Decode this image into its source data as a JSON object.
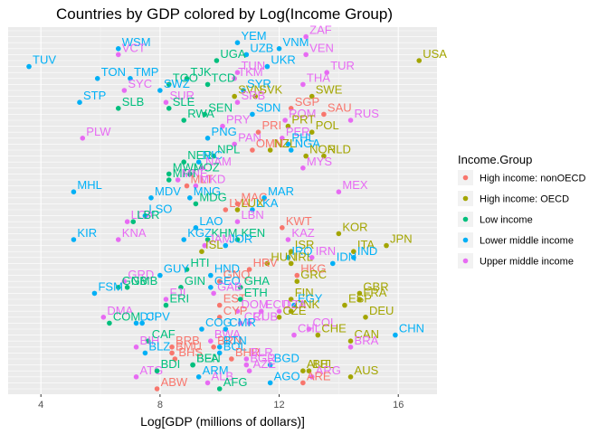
{
  "chart_data": {
    "type": "scatter",
    "title": "Countries by GDP colored by Log(Income Group)",
    "xlabel": "Log[GDP (millions of dollars)]",
    "ylabel": "",
    "xlim": [
      2.9,
      17.3
    ],
    "xticks": [
      4,
      8,
      12,
      16
    ],
    "y_axis": "none",
    "grid": true,
    "legend": {
      "title": "Income.Group",
      "placement": "right",
      "entries": [
        {
          "name": "High income: nonOECD",
          "color": "#F8766D"
        },
        {
          "name": "High income: OECD",
          "color": "#A3A500"
        },
        {
          "name": "Low income",
          "color": "#00BF7D"
        },
        {
          "name": "Lower middle income",
          "color": "#00B0F6"
        },
        {
          "name": "Upper middle income",
          "color": "#E76BF3"
        }
      ]
    },
    "points": [
      {
        "label": "USA",
        "x": 16.7,
        "r": 5,
        "g": 1
      },
      {
        "label": "TUV",
        "x": 3.6,
        "r": 6,
        "g": 3
      },
      {
        "label": "WSM",
        "x": 6.6,
        "r": 3,
        "g": 3
      },
      {
        "label": "VCT",
        "x": 6.6,
        "r": 4,
        "g": 4
      },
      {
        "label": "VNM",
        "x": 12.0,
        "r": 3,
        "g": 3
      },
      {
        "label": "ZAF",
        "x": 12.9,
        "r": 1,
        "g": 4
      },
      {
        "label": "VEN",
        "x": 12.9,
        "r": 4,
        "g": 4
      },
      {
        "label": "YEM",
        "x": 10.6,
        "r": 2,
        "g": 3
      },
      {
        "label": "UZB",
        "x": 10.9,
        "r": 4,
        "g": 3
      },
      {
        "label": "UKR",
        "x": 11.6,
        "r": 6,
        "g": 3
      },
      {
        "label": "UGA",
        "x": 9.9,
        "r": 5,
        "g": 2
      },
      {
        "label": "TUN",
        "x": 10.6,
        "r": 7,
        "g": 4
      },
      {
        "label": "TUR",
        "x": 13.6,
        "r": 7,
        "g": 4
      },
      {
        "label": "TON",
        "x": 5.9,
        "r": 8,
        "g": 3
      },
      {
        "label": "TMP",
        "x": 7.0,
        "r": 8,
        "g": 3
      },
      {
        "label": "TJK",
        "x": 8.9,
        "r": 8,
        "g": 2
      },
      {
        "label": "TKM",
        "x": 10.5,
        "r": 8,
        "g": 4
      },
      {
        "label": "TGO",
        "x": 8.3,
        "r": 9,
        "g": 2
      },
      {
        "label": "TCD",
        "x": 9.6,
        "r": 9,
        "g": 2
      },
      {
        "label": "THA",
        "x": 12.8,
        "r": 9,
        "g": 4
      },
      {
        "label": "SYC",
        "x": 6.8,
        "r": 10,
        "g": 4
      },
      {
        "label": "SWZ",
        "x": 8.0,
        "r": 10,
        "g": 3
      },
      {
        "label": "SYR",
        "x": 10.8,
        "r": 10,
        "g": 3
      },
      {
        "label": "SWE",
        "x": 13.1,
        "r": 11,
        "g": 1
      },
      {
        "label": "SVN",
        "x": 10.5,
        "r": 11,
        "g": 1
      },
      {
        "label": "SVK",
        "x": 11.2,
        "r": 11,
        "g": 1
      },
      {
        "label": "STP",
        "x": 5.3,
        "r": 12,
        "g": 3
      },
      {
        "label": "SUR",
        "x": 8.2,
        "r": 12,
        "g": 4
      },
      {
        "label": "SRB",
        "x": 10.6,
        "r": 12,
        "g": 4
      },
      {
        "label": "SLB",
        "x": 6.6,
        "r": 13,
        "g": 2
      },
      {
        "label": "SLE",
        "x": 8.3,
        "r": 13,
        "g": 2
      },
      {
        "label": "SEN",
        "x": 9.5,
        "r": 14,
        "g": 2
      },
      {
        "label": "SDN",
        "x": 11.1,
        "r": 14,
        "g": 3
      },
      {
        "label": "SGP",
        "x": 12.4,
        "r": 13,
        "g": 0
      },
      {
        "label": "SAU",
        "x": 13.5,
        "r": 14,
        "g": 0
      },
      {
        "label": "RWA",
        "x": 8.8,
        "r": 15,
        "g": 2
      },
      {
        "label": "PRY",
        "x": 10.1,
        "r": 16,
        "g": 4
      },
      {
        "label": "ROM",
        "x": 12.2,
        "r": 15,
        "g": 4
      },
      {
        "label": "RUS",
        "x": 14.4,
        "r": 15,
        "g": 4
      },
      {
        "label": "PRT",
        "x": 12.3,
        "r": 16,
        "g": 1
      },
      {
        "label": "PRI",
        "x": 11.3,
        "r": 17,
        "g": 0
      },
      {
        "label": "POL",
        "x": 13.1,
        "r": 17,
        "g": 1
      },
      {
        "label": "PLW",
        "x": 5.4,
        "r": 18,
        "g": 4
      },
      {
        "label": "PNG",
        "x": 9.6,
        "r": 18,
        "g": 3
      },
      {
        "label": "PAN",
        "x": 10.5,
        "r": 19,
        "g": 4
      },
      {
        "label": "PER",
        "x": 12.1,
        "r": 18,
        "g": 4
      },
      {
        "label": "PHL",
        "x": 12.3,
        "r": 19,
        "g": 3
      },
      {
        "label": "OMN",
        "x": 11.1,
        "r": 20,
        "g": 0
      },
      {
        "label": "NZL",
        "x": 11.7,
        "r": 20,
        "g": 1
      },
      {
        "label": "NGA",
        "x": 12.4,
        "r": 20,
        "g": 3
      },
      {
        "label": "NOR",
        "x": 12.9,
        "r": 21,
        "g": 1
      },
      {
        "label": "NLD",
        "x": 13.5,
        "r": 21,
        "g": 1
      },
      {
        "label": "NPL",
        "x": 9.8,
        "r": 21,
        "g": 2
      },
      {
        "label": "NER",
        "x": 8.8,
        "r": 22,
        "g": 2
      },
      {
        "label": "NIC",
        "x": 9.3,
        "r": 22,
        "g": 3
      },
      {
        "label": "NAM",
        "x": 9.4,
        "r": 23,
        "g": 4
      },
      {
        "label": "MYS",
        "x": 12.8,
        "r": 23,
        "g": 4
      },
      {
        "label": "MWI",
        "x": 8.3,
        "r": 24,
        "g": 2
      },
      {
        "label": "MOZ",
        "x": 9.0,
        "r": 24,
        "g": 2
      },
      {
        "label": "MRT",
        "x": 8.3,
        "r": 25,
        "g": 2
      },
      {
        "label": "MNE",
        "x": 8.6,
        "r": 25,
        "g": 4
      },
      {
        "label": "MLT",
        "x": 8.9,
        "r": 26,
        "g": 0
      },
      {
        "label": "MKD",
        "x": 9.2,
        "r": 26,
        "g": 4
      },
      {
        "label": "MHL",
        "x": 5.1,
        "r": 27,
        "g": 3
      },
      {
        "label": "MDV",
        "x": 7.7,
        "r": 28,
        "g": 3
      },
      {
        "label": "MNG",
        "x": 9.0,
        "r": 28,
        "g": 3
      },
      {
        "label": "MDG",
        "x": 9.2,
        "r": 29,
        "g": 2
      },
      {
        "label": "MAR",
        "x": 11.5,
        "r": 28,
        "g": 3
      },
      {
        "label": "MEX",
        "x": 14.0,
        "r": 27,
        "g": 4
      },
      {
        "label": "MAC",
        "x": 10.6,
        "r": 29,
        "g": 0
      },
      {
        "label": "LVA",
        "x": 10.2,
        "r": 30,
        "g": 0
      },
      {
        "label": "LUX",
        "x": 10.6,
        "r": 30,
        "g": 1
      },
      {
        "label": "LKA",
        "x": 11.1,
        "r": 30,
        "g": 3
      },
      {
        "label": "LSO",
        "x": 7.5,
        "r": 31,
        "g": 3
      },
      {
        "label": "LCA",
        "x": 6.9,
        "r": 32,
        "g": 4
      },
      {
        "label": "LBR",
        "x": 7.1,
        "r": 32,
        "g": 2
      },
      {
        "label": "LBN",
        "x": 10.6,
        "r": 32,
        "g": 4
      },
      {
        "label": "KWT",
        "x": 12.1,
        "r": 33,
        "g": 0
      },
      {
        "label": "KOR",
        "x": 14.0,
        "r": 34,
        "g": 1
      },
      {
        "label": "KIR",
        "x": 5.1,
        "r": 35,
        "g": 3
      },
      {
        "label": "KNA",
        "x": 6.6,
        "r": 35,
        "g": 4
      },
      {
        "label": "LAO",
        "x": 9.2,
        "r": 33,
        "g": 3
      },
      {
        "label": "KGZ",
        "x": 8.8,
        "r": 35,
        "g": 3
      },
      {
        "label": "KHM",
        "x": 9.6,
        "r": 35,
        "g": 2
      },
      {
        "label": "KEN",
        "x": 10.6,
        "r": 35,
        "g": 2
      },
      {
        "label": "JAM",
        "x": 9.5,
        "r": 36,
        "g": 4
      },
      {
        "label": "JOR",
        "x": 10.2,
        "r": 36,
        "g": 3
      },
      {
        "label": "KAZ",
        "x": 12.3,
        "r": 35,
        "g": 4
      },
      {
        "label": "JPN",
        "x": 15.6,
        "r": 36,
        "g": 1
      },
      {
        "label": "ITA",
        "x": 14.5,
        "r": 37,
        "g": 1
      },
      {
        "label": "ISL",
        "x": 9.4,
        "r": 37,
        "g": 1
      },
      {
        "label": "ISR",
        "x": 12.4,
        "r": 37,
        "g": 1
      },
      {
        "label": "IRQ",
        "x": 12.3,
        "r": 38,
        "g": 3
      },
      {
        "label": "IRN",
        "x": 13.1,
        "r": 38,
        "g": 4
      },
      {
        "label": "IND",
        "x": 14.5,
        "r": 38,
        "g": 3
      },
      {
        "label": "IDN",
        "x": 13.8,
        "r": 39,
        "g": 3
      },
      {
        "label": "IRL",
        "x": 12.4,
        "r": 39,
        "g": 1
      },
      {
        "label": "HUN",
        "x": 11.6,
        "r": 39,
        "g": 1
      },
      {
        "label": "HTI",
        "x": 8.9,
        "r": 40,
        "g": 2
      },
      {
        "label": "HRV",
        "x": 11.0,
        "r": 40,
        "g": 0
      },
      {
        "label": "HND",
        "x": 9.7,
        "r": 41,
        "g": 3
      },
      {
        "label": "HKG",
        "x": 12.6,
        "r": 41,
        "g": 0
      },
      {
        "label": "GRD",
        "x": 6.8,
        "r": 42,
        "g": 4
      },
      {
        "label": "GUY",
        "x": 8.0,
        "r": 41,
        "g": 3
      },
      {
        "label": "GNQ",
        "x": 10.0,
        "r": 42,
        "g": 0
      },
      {
        "label": "GRC",
        "x": 12.6,
        "r": 42,
        "g": 1
      },
      {
        "label": "GMB",
        "x": 6.9,
        "r": 43,
        "g": 2
      },
      {
        "label": "GNB",
        "x": 6.6,
        "r": 43,
        "g": 2
      },
      {
        "label": "GIN",
        "x": 8.7,
        "r": 43,
        "g": 2
      },
      {
        "label": "GEO",
        "x": 9.7,
        "r": 43,
        "g": 3
      },
      {
        "label": "GHA",
        "x": 10.7,
        "r": 43,
        "g": 2
      },
      {
        "label": "GAB",
        "x": 9.8,
        "r": 44,
        "g": 4
      },
      {
        "label": "GBR",
        "x": 14.7,
        "r": 44,
        "g": 1
      },
      {
        "label": "FRA",
        "x": 14.7,
        "r": 45,
        "g": 1
      },
      {
        "label": "FSM",
        "x": 5.8,
        "r": 44,
        "g": 3
      },
      {
        "label": "FJI",
        "x": 8.2,
        "r": 45,
        "g": 4
      },
      {
        "label": "EST",
        "x": 10.0,
        "r": 46,
        "g": 0
      },
      {
        "label": "ETH",
        "x": 10.7,
        "r": 45,
        "g": 2
      },
      {
        "label": "FIN",
        "x": 12.4,
        "r": 45,
        "g": 1
      },
      {
        "label": "ERI",
        "x": 8.2,
        "r": 46,
        "g": 2
      },
      {
        "label": "ESP",
        "x": 14.2,
        "r": 46,
        "g": 1
      },
      {
        "label": "EGY",
        "x": 12.5,
        "r": 46,
        "g": 3
      },
      {
        "label": "ECU",
        "x": 11.4,
        "r": 47,
        "g": 4
      },
      {
        "label": "DOM",
        "x": 10.6,
        "r": 47,
        "g": 4
      },
      {
        "label": "DNK",
        "x": 12.4,
        "r": 47,
        "g": 1
      },
      {
        "label": "DZA",
        "x": 12.0,
        "r": 47,
        "g": 4
      },
      {
        "label": "DEU",
        "x": 14.9,
        "r": 48,
        "g": 1
      },
      {
        "label": "DMA",
        "x": 6.1,
        "r": 48,
        "g": 4
      },
      {
        "label": "CZE",
        "x": 12.0,
        "r": 48,
        "g": 1
      },
      {
        "label": "DJI",
        "x": 7.2,
        "r": 49,
        "g": 3
      },
      {
        "label": "CYP",
        "x": 10.0,
        "r": 48,
        "g": 0
      },
      {
        "label": "CUB",
        "x": 11.0,
        "r": 49,
        "g": 4
      },
      {
        "label": "CRI",
        "x": 10.7,
        "r": 49,
        "g": 4
      },
      {
        "label": "COM",
        "x": 6.3,
        "r": 49,
        "g": 2
      },
      {
        "label": "CPV",
        "x": 7.4,
        "r": 49,
        "g": 3
      },
      {
        "label": "COG",
        "x": 9.4,
        "r": 50,
        "g": 3
      },
      {
        "label": "CMR",
        "x": 10.2,
        "r": 50,
        "g": 3
      },
      {
        "label": "COL",
        "x": 13.0,
        "r": 50,
        "g": 4
      },
      {
        "label": "CHN",
        "x": 15.9,
        "r": 51,
        "g": 3
      },
      {
        "label": "CHL",
        "x": 12.5,
        "r": 51,
        "g": 4
      },
      {
        "label": "CHE",
        "x": 13.3,
        "r": 51,
        "g": 1
      },
      {
        "label": "CAN",
        "x": 14.4,
        "r": 52,
        "g": 1
      },
      {
        "label": "CAF",
        "x": 7.6,
        "r": 52,
        "g": 2
      },
      {
        "label": "BWA",
        "x": 9.7,
        "r": 52,
        "g": 4
      },
      {
        "label": "BRN",
        "x": 9.8,
        "r": 53,
        "g": 0
      },
      {
        "label": "BTN",
        "x": 10.0,
        "r": 53,
        "g": 3
      },
      {
        "label": "BRB",
        "x": 8.4,
        "r": 53,
        "g": 0
      },
      {
        "label": "BIH",
        "x": 7.2,
        "r": 53,
        "g": 4
      },
      {
        "label": "BRA",
        "x": 14.4,
        "r": 53,
        "g": 4
      },
      {
        "label": "BLZ",
        "x": 7.5,
        "r": 54,
        "g": 3
      },
      {
        "label": "BMU",
        "x": 8.4,
        "r": 54,
        "g": 0
      },
      {
        "label": "BOL",
        "x": 10.0,
        "r": 54,
        "g": 3
      },
      {
        "label": "BHS",
        "x": 8.5,
        "r": 55,
        "g": 0
      },
      {
        "label": "BHR",
        "x": 10.4,
        "r": 55,
        "g": 0
      },
      {
        "label": "BLR",
        "x": 10.9,
        "r": 55,
        "g": 4
      },
      {
        "label": "BGD",
        "x": 11.7,
        "r": 56,
        "g": 3
      },
      {
        "label": "BEN",
        "x": 9.1,
        "r": 56,
        "g": 2
      },
      {
        "label": "BFA",
        "x": 9.1,
        "r": 56,
        "g": 2
      },
      {
        "label": "BGR",
        "x": 10.9,
        "r": 56,
        "g": 4
      },
      {
        "label": "BEL",
        "x": 13.0,
        "r": 57,
        "g": 1
      },
      {
        "label": "AUT",
        "x": 12.8,
        "r": 57,
        "g": 1
      },
      {
        "label": "AUS",
        "x": 14.4,
        "r": 58,
        "g": 1
      },
      {
        "label": "ATG",
        "x": 7.2,
        "r": 58,
        "g": 4
      },
      {
        "label": "AZE",
        "x": 11.0,
        "r": 57,
        "g": 4
      },
      {
        "label": "BDI",
        "x": 7.9,
        "r": 57,
        "g": 2
      },
      {
        "label": "ARM",
        "x": 9.3,
        "r": 58,
        "g": 3
      },
      {
        "label": "ALB",
        "x": 9.6,
        "r": 59,
        "g": 4
      },
      {
        "label": "ARG",
        "x": 13.1,
        "r": 58,
        "g": 4
      },
      {
        "label": "ARE",
        "x": 12.8,
        "r": 59,
        "g": 0
      },
      {
        "label": "AGO",
        "x": 11.7,
        "r": 59,
        "g": 3
      },
      {
        "label": "AFG",
        "x": 10.0,
        "r": 60,
        "g": 2
      },
      {
        "label": "ABW",
        "x": 7.9,
        "r": 60,
        "g": 0
      }
    ]
  }
}
